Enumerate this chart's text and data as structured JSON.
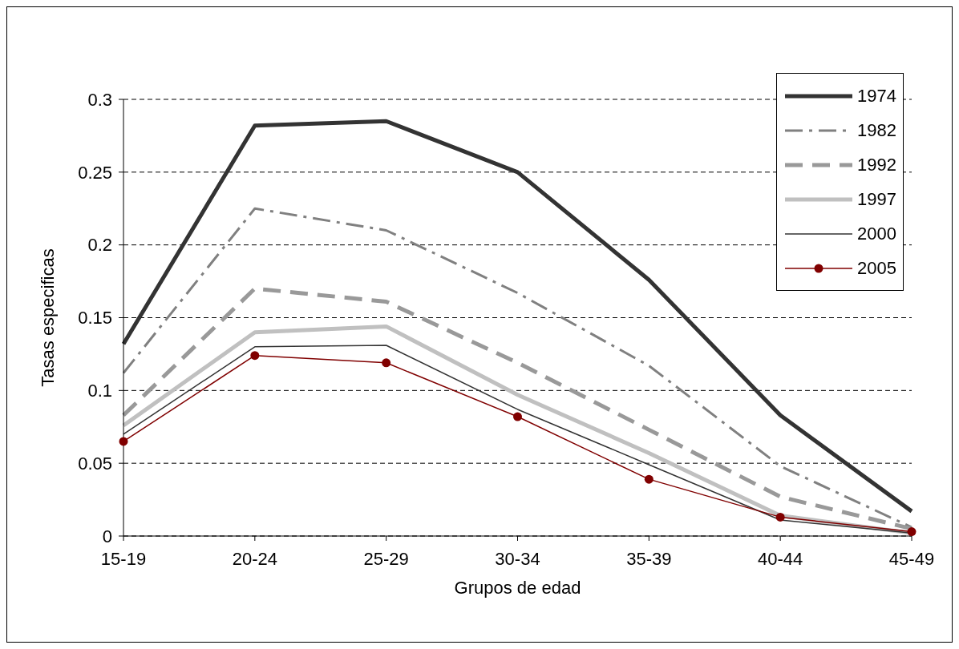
{
  "chart_data": {
    "type": "line",
    "xlabel": "Grupos de edad",
    "ylabel": "Tasas especificas",
    "categories": [
      "15-19",
      "20-24",
      "25-29",
      "30-34",
      "35-39",
      "40-44",
      "45-49"
    ],
    "series": [
      {
        "name": "1974",
        "color": "#333333",
        "line_style": "solid",
        "values": [
          0.132,
          0.282,
          0.285,
          0.25,
          0.176,
          0.083,
          0.017
        ]
      },
      {
        "name": "1982",
        "color": "#808080",
        "line_style": "dashed",
        "values": [
          0.112,
          0.225,
          0.21,
          0.167,
          0.117,
          0.048,
          0.006
        ]
      },
      {
        "name": "1992",
        "color": "#999999",
        "line_style": "dashed",
        "values": [
          0.083,
          0.17,
          0.161,
          0.119,
          0.073,
          0.027,
          0.005
        ]
      },
      {
        "name": "1997",
        "color": "#c0c0c0",
        "line_style": "solid",
        "values": [
          0.076,
          0.14,
          0.144,
          0.097,
          0.057,
          0.014,
          0.002
        ]
      },
      {
        "name": "2000",
        "color": "#333333",
        "line_style": "solid",
        "values": [
          0.07,
          0.13,
          0.131,
          0.087,
          0.049,
          0.011,
          0.002
        ]
      },
      {
        "name": "2005",
        "color": "#800000",
        "line_style": "solid",
        "marker": "circle",
        "values": [
          0.065,
          0.124,
          0.119,
          0.082,
          0.039,
          0.013,
          0.003
        ]
      }
    ],
    "ylim": [
      0,
      0.3
    ],
    "yticks": [
      0,
      0.05,
      0.1,
      0.15,
      0.2,
      0.25,
      0.3
    ],
    "grid": "y",
    "legend": "top right",
    "marker": "none"
  }
}
